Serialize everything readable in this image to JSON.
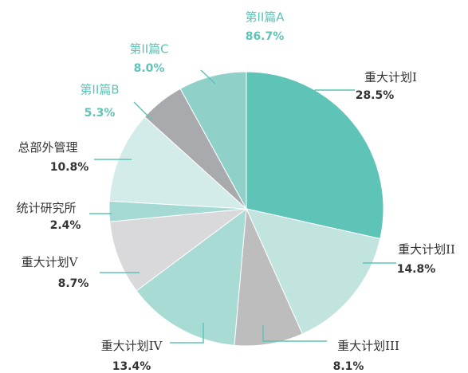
{
  "chart_data": {
    "type": "pie",
    "categories": [
      "重大计划I",
      "重大计划II",
      "重大计划III",
      "重大计划IV",
      "重大计划V",
      "统计研究所",
      "总部外管理",
      "第II篇B",
      "第II篇C"
    ],
    "values": [
      28.5,
      14.8,
      8.1,
      13.4,
      8.7,
      2.4,
      10.8,
      5.3,
      8.0
    ],
    "value_labels": [
      "28.5%",
      "14.8%",
      "8.1%",
      "13.4%",
      "8.7%",
      "2.4%",
      "10.8%",
      "5.3%",
      "8.0%"
    ],
    "colors": [
      "#5fc4b8",
      "#c1e4df",
      "#bdbdbd",
      "#a8dbd4",
      "#d9d9db",
      "#a5d9d3",
      "#d3ece9",
      "#a9aaae",
      "#8fd1c9"
    ],
    "annotations": [
      {
        "text": "第II篇A",
        "value": "86.7%"
      }
    ]
  }
}
